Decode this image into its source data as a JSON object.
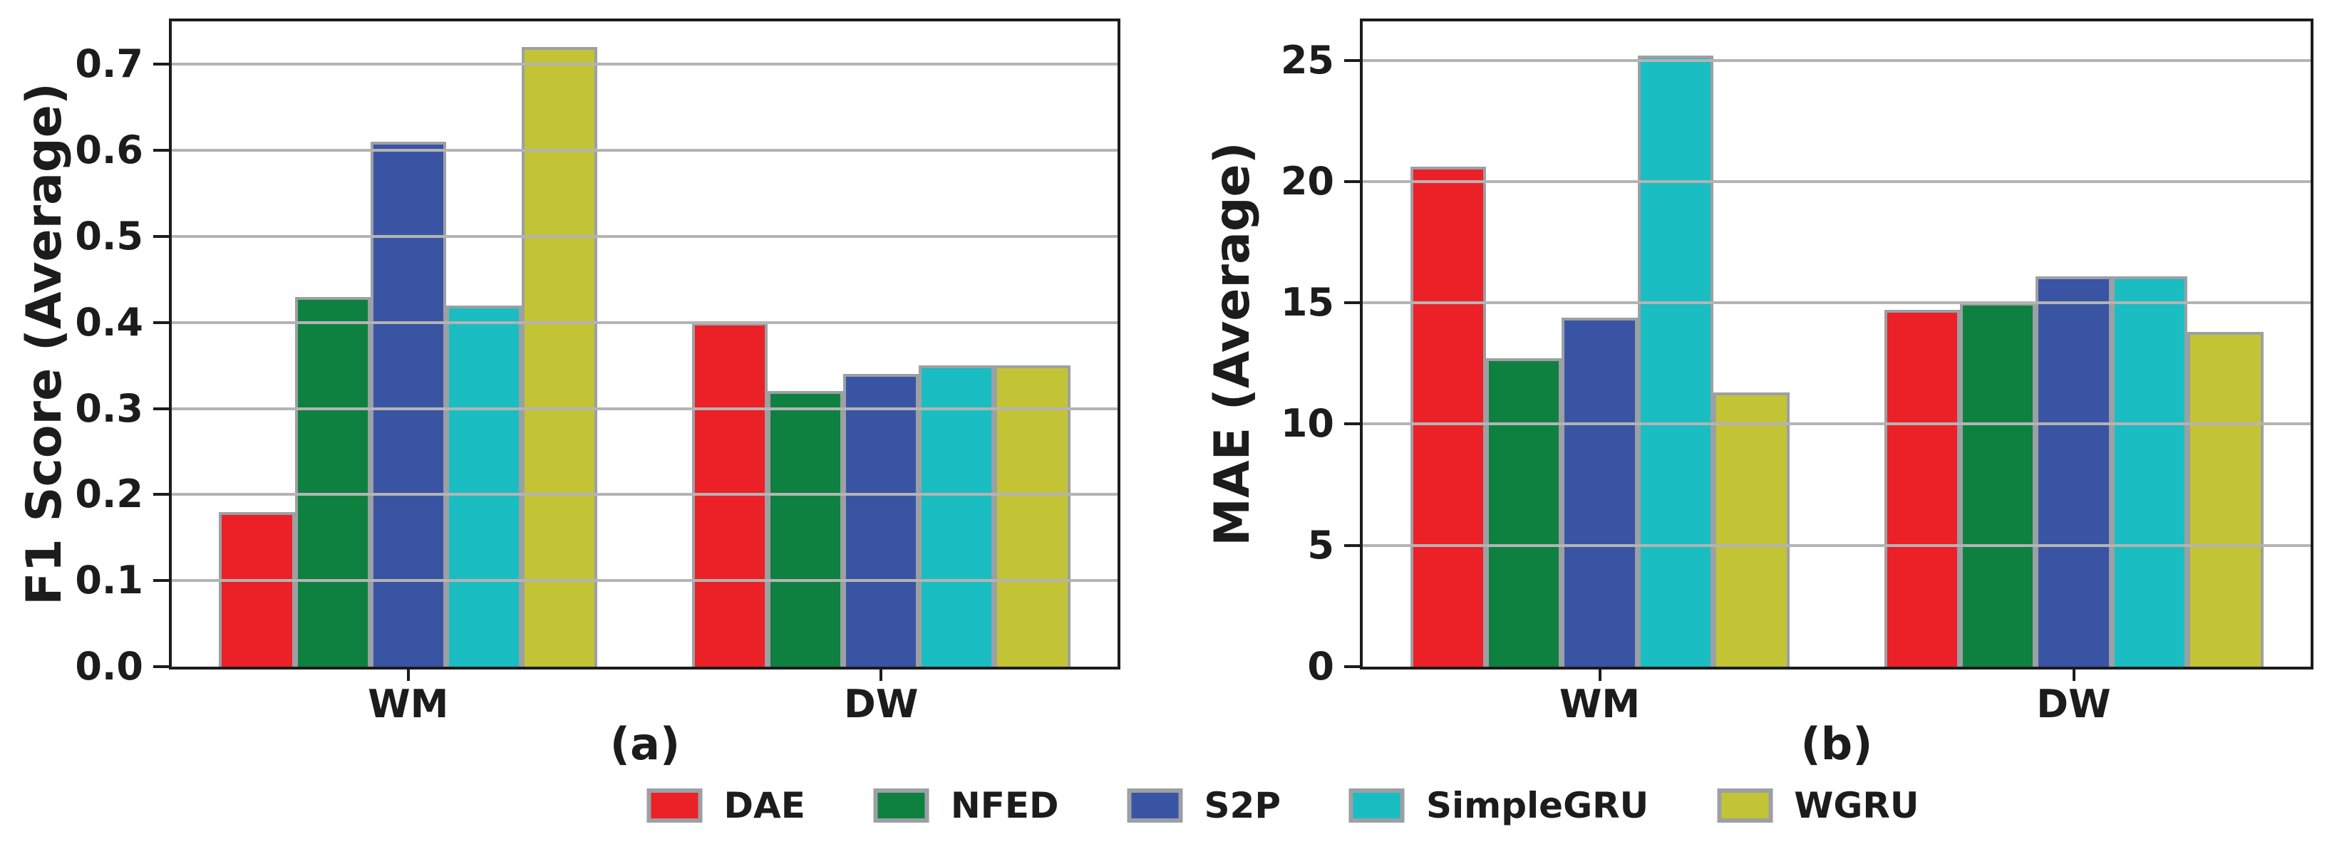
{
  "figure": {
    "background": "#ffffff",
    "frame_color": "#1c1c1c",
    "grid_color": "#b4b4b4",
    "bar_edge_color": "#9ca0a4"
  },
  "chart_data": [
    {
      "type": "bar",
      "panel_caption": "(a)",
      "title": "",
      "xlabel": "",
      "ylabel": "F1 Score (Average)",
      "categories": [
        "WM",
        "DW"
      ],
      "ylim": [
        0,
        0.75
      ],
      "yticks": [
        0,
        0.1,
        0.2,
        0.3,
        0.4,
        0.5,
        0.6,
        0.7
      ],
      "ytick_labels": [
        "0.0",
        "0.1",
        "0.2",
        "0.3",
        "0.4",
        "0.5",
        "0.6",
        "0.7"
      ],
      "grid": "horizontal gridlines drawn over bars",
      "legend_position": "shared legend below figure",
      "series": [
        {
          "name": "DAE",
          "color": "#ec2027",
          "values": [
            0.18,
            0.4
          ]
        },
        {
          "name": "NFED",
          "color": "#0e8140",
          "values": [
            0.43,
            0.32
          ]
        },
        {
          "name": "S2P",
          "color": "#3a54a4",
          "values": [
            0.61,
            0.34
          ]
        },
        {
          "name": "SimpleGRU",
          "color": "#1abdc2",
          "values": [
            0.42,
            0.35
          ]
        },
        {
          "name": "WGRU",
          "color": "#c3c435",
          "values": [
            0.72,
            0.35
          ]
        }
      ]
    },
    {
      "type": "bar",
      "panel_caption": "(b)",
      "title": "",
      "xlabel": "",
      "ylabel": "MAE (Average)",
      "categories": [
        "WM",
        "DW"
      ],
      "ylim": [
        0,
        26.6
      ],
      "yticks": [
        0,
        5,
        10,
        15,
        20,
        25
      ],
      "ytick_labels": [
        "0",
        "5",
        "10",
        "15",
        "20",
        "25"
      ],
      "grid": "horizontal gridlines drawn over bars",
      "legend_position": "shared legend below figure",
      "series": [
        {
          "name": "DAE",
          "color": "#ec2027",
          "values": [
            20.6,
            14.7
          ]
        },
        {
          "name": "NFED",
          "color": "#0e8140",
          "values": [
            12.7,
            15.0
          ]
        },
        {
          "name": "S2P",
          "color": "#3a54a4",
          "values": [
            14.4,
            16.1
          ]
        },
        {
          "name": "SimpleGRU",
          "color": "#1abdc2",
          "values": [
            25.2,
            16.1
          ]
        },
        {
          "name": "WGRU",
          "color": "#c3c435",
          "values": [
            11.3,
            13.8
          ]
        }
      ]
    }
  ]
}
